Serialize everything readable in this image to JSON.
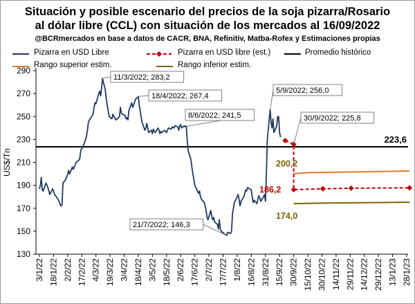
{
  "title_line1": "Situación y posible escenario del precios de la soja pizarra/Rosario",
  "title_line2": "al dólar libre (CCL) con situación de los mercados al 16/09/2022",
  "subtitle": "@BCRmercados en base a datos de CACR, BNA, Refinitiv, Matba-Rofex y Estimaciones propias",
  "colors": {
    "pizarra": "#1f3864",
    "pizarra_est": "#c00000",
    "promedio": "#000000",
    "rango_sup": "#e07b22",
    "rango_inf": "#7f6000"
  },
  "chart_data": {
    "type": "line",
    "ylabel": "US$/Tn",
    "ylim": [
      130,
      290
    ],
    "yticks": [
      130,
      150,
      170,
      190,
      210,
      230,
      250,
      270,
      290
    ],
    "xlabels": [
      "3/1/22",
      "18/1/22",
      "2/2/22",
      "17/2/22",
      "4/3/22",
      "19/3/22",
      "3/4/22",
      "18/4/22",
      "3/5/22",
      "18/5/22",
      "2/6/22",
      "17/6/22",
      "2/7/22",
      "17/7/22",
      "1/8/22",
      "16/8/22",
      "31/8/22",
      "15/9/22",
      "30/9/22",
      "15/10/22",
      "30/10/22",
      "14/11/22",
      "29/11/22",
      "14/12/22",
      "29/12/22",
      "13/1/23",
      "28/1/23"
    ],
    "legend": [
      {
        "key": "pizarra",
        "label": "Pizarra en USD Libre"
      },
      {
        "key": "pizarra_est",
        "label": "Pizarra en USD libre (est.)"
      },
      {
        "key": "promedio",
        "label": "Promedio histórico"
      },
      {
        "key": "rango_sup",
        "label": "Rango superior estim."
      },
      {
        "key": "rango_inf",
        "label": "Rango inferior estim."
      }
    ],
    "series": [
      {
        "name": "Pizarra en USD Libre",
        "key": "pizarra",
        "points": [
          [
            "2022-01-03",
            187
          ],
          [
            "2022-01-04",
            190
          ],
          [
            "2022-01-05",
            197
          ],
          [
            "2022-01-06",
            186
          ],
          [
            "2022-01-07",
            185
          ],
          [
            "2022-01-10",
            192
          ],
          [
            "2022-01-11",
            190
          ],
          [
            "2022-01-12",
            188
          ],
          [
            "2022-01-13",
            185
          ],
          [
            "2022-01-14",
            182
          ],
          [
            "2022-01-17",
            187
          ],
          [
            "2022-01-18",
            185
          ],
          [
            "2022-01-19",
            182
          ],
          [
            "2022-01-20",
            181
          ],
          [
            "2022-01-21",
            180
          ],
          [
            "2022-01-24",
            176
          ],
          [
            "2022-01-25",
            173
          ],
          [
            "2022-01-26",
            172
          ],
          [
            "2022-01-27",
            173
          ],
          [
            "2022-01-28",
            192
          ],
          [
            "2022-01-31",
            195
          ],
          [
            "2022-02-01",
            198
          ],
          [
            "2022-02-02",
            199
          ],
          [
            "2022-02-03",
            203
          ],
          [
            "2022-02-04",
            200
          ],
          [
            "2022-02-07",
            206
          ],
          [
            "2022-02-08",
            204
          ],
          [
            "2022-02-09",
            206
          ],
          [
            "2022-02-10",
            208
          ],
          [
            "2022-02-11",
            210
          ],
          [
            "2022-02-14",
            212
          ],
          [
            "2022-02-15",
            214
          ],
          [
            "2022-02-16",
            221
          ],
          [
            "2022-02-17",
            222
          ],
          [
            "2022-02-18",
            223
          ],
          [
            "2022-02-21",
            230
          ],
          [
            "2022-02-22",
            233
          ],
          [
            "2022-02-23",
            238
          ],
          [
            "2022-02-24",
            245
          ],
          [
            "2022-02-25",
            247
          ],
          [
            "2022-03-01",
            252
          ],
          [
            "2022-03-02",
            258
          ],
          [
            "2022-03-03",
            262
          ],
          [
            "2022-03-04",
            261
          ],
          [
            "2022-03-07",
            270
          ],
          [
            "2022-03-08",
            272
          ],
          [
            "2022-03-09",
            268
          ],
          [
            "2022-03-10",
            275
          ],
          [
            "2022-03-11",
            283.2
          ],
          [
            "2022-03-14",
            273
          ],
          [
            "2022-03-15",
            265
          ],
          [
            "2022-03-16",
            260
          ],
          [
            "2022-03-17",
            255
          ],
          [
            "2022-03-18",
            250
          ],
          [
            "2022-03-21",
            248
          ],
          [
            "2022-03-22",
            252
          ],
          [
            "2022-03-23",
            250
          ],
          [
            "2022-03-24",
            249
          ],
          [
            "2022-03-25",
            247
          ],
          [
            "2022-03-28",
            249
          ],
          [
            "2022-03-29",
            250
          ],
          [
            "2022-03-30",
            258
          ],
          [
            "2022-03-31",
            253
          ],
          [
            "2022-04-01",
            252
          ],
          [
            "2022-04-04",
            251
          ],
          [
            "2022-04-05",
            248
          ],
          [
            "2022-04-06",
            249
          ],
          [
            "2022-04-07",
            247
          ],
          [
            "2022-04-08",
            255
          ],
          [
            "2022-04-11",
            262
          ],
          [
            "2022-04-12",
            258
          ],
          [
            "2022-04-13",
            260
          ],
          [
            "2022-04-15",
            265
          ],
          [
            "2022-04-18",
            267.4
          ],
          [
            "2022-04-19",
            260
          ],
          [
            "2022-04-20",
            255
          ],
          [
            "2022-04-21",
            250
          ],
          [
            "2022-04-22",
            245
          ],
          [
            "2022-04-25",
            238
          ],
          [
            "2022-04-26",
            240
          ],
          [
            "2022-04-27",
            244
          ],
          [
            "2022-04-28",
            240
          ],
          [
            "2022-04-29",
            236
          ],
          [
            "2022-05-02",
            238
          ],
          [
            "2022-05-03",
            235
          ],
          [
            "2022-05-04",
            239
          ],
          [
            "2022-05-05",
            237
          ],
          [
            "2022-05-06",
            236
          ],
          [
            "2022-05-09",
            240
          ],
          [
            "2022-05-10",
            238
          ],
          [
            "2022-05-11",
            235
          ],
          [
            "2022-05-12",
            237
          ],
          [
            "2022-05-13",
            236
          ],
          [
            "2022-05-16",
            238
          ],
          [
            "2022-05-17",
            237
          ],
          [
            "2022-05-18",
            236
          ],
          [
            "2022-05-19",
            238
          ],
          [
            "2022-05-20",
            240
          ],
          [
            "2022-05-23",
            239
          ],
          [
            "2022-05-24",
            241
          ],
          [
            "2022-05-26",
            240
          ],
          [
            "2022-05-27",
            242
          ],
          [
            "2022-05-30",
            241
          ],
          [
            "2022-05-31",
            238
          ],
          [
            "2022-06-01",
            242
          ],
          [
            "2022-06-02",
            243
          ],
          [
            "2022-06-03",
            240
          ],
          [
            "2022-06-06",
            242
          ],
          [
            "2022-06-07",
            241
          ],
          [
            "2022-06-08",
            241.5
          ],
          [
            "2022-06-09",
            228
          ],
          [
            "2022-06-10",
            220
          ],
          [
            "2022-06-13",
            212
          ],
          [
            "2022-06-14",
            205
          ],
          [
            "2022-06-15",
            200
          ],
          [
            "2022-06-16",
            195
          ],
          [
            "2022-06-17",
            190
          ],
          [
            "2022-06-21",
            183
          ],
          [
            "2022-06-22",
            185
          ],
          [
            "2022-06-23",
            180
          ],
          [
            "2022-06-24",
            178
          ],
          [
            "2022-06-27",
            175
          ],
          [
            "2022-06-28",
            172
          ],
          [
            "2022-06-29",
            168
          ],
          [
            "2022-06-30",
            162
          ],
          [
            "2022-07-01",
            160
          ],
          [
            "2022-07-04",
            168
          ],
          [
            "2022-07-05",
            163
          ],
          [
            "2022-07-06",
            160
          ],
          [
            "2022-07-07",
            162
          ],
          [
            "2022-07-08",
            158
          ],
          [
            "2022-07-11",
            156
          ],
          [
            "2022-07-12",
            152
          ],
          [
            "2022-07-13",
            160
          ],
          [
            "2022-07-14",
            152
          ],
          [
            "2022-07-15",
            150
          ],
          [
            "2022-07-18",
            148
          ],
          [
            "2022-07-19",
            147
          ],
          [
            "2022-07-20",
            147
          ],
          [
            "2022-07-21",
            146.3
          ],
          [
            "2022-07-22",
            149
          ],
          [
            "2022-07-25",
            148
          ],
          [
            "2022-07-26",
            150
          ],
          [
            "2022-07-27",
            165
          ],
          [
            "2022-07-28",
            170
          ],
          [
            "2022-07-29",
            175
          ],
          [
            "2022-08-01",
            180
          ],
          [
            "2022-08-02",
            182
          ],
          [
            "2022-08-03",
            178
          ],
          [
            "2022-08-04",
            172
          ],
          [
            "2022-08-05",
            176
          ],
          [
            "2022-08-08",
            180
          ],
          [
            "2022-08-09",
            183
          ],
          [
            "2022-08-10",
            186
          ],
          [
            "2022-08-11",
            185
          ],
          [
            "2022-08-12",
            188
          ],
          [
            "2022-08-16",
            186
          ],
          [
            "2022-08-17",
            180
          ],
          [
            "2022-08-18",
            175
          ],
          [
            "2022-08-19",
            177
          ],
          [
            "2022-08-22",
            174
          ],
          [
            "2022-08-23",
            178
          ],
          [
            "2022-08-24",
            181
          ],
          [
            "2022-08-25",
            179
          ],
          [
            "2022-08-26",
            176
          ],
          [
            "2022-08-29",
            180
          ],
          [
            "2022-08-30",
            182
          ],
          [
            "2022-08-31",
            176
          ],
          [
            "2022-09-01",
            200
          ],
          [
            "2022-09-02",
            230
          ],
          [
            "2022-09-05",
            256.0
          ],
          [
            "2022-09-06",
            245
          ],
          [
            "2022-09-07",
            240
          ],
          [
            "2022-09-08",
            248
          ],
          [
            "2022-09-09",
            236
          ],
          [
            "2022-09-12",
            242
          ],
          [
            "2022-09-13",
            250
          ],
          [
            "2022-09-14",
            250
          ],
          [
            "2022-09-15",
            236
          ],
          [
            "2022-09-16",
            232
          ]
        ]
      },
      {
        "name": "Pizarra en USD libre (est.)",
        "key": "pizarra_est",
        "points": [
          [
            "2022-09-21",
            229
          ],
          [
            "2022-09-30",
            225.8
          ],
          [
            "2022-09-30",
            186.2
          ],
          [
            "2022-10-31",
            187
          ],
          [
            "2022-11-30",
            187.5
          ],
          [
            "2023-01-31",
            187.8
          ]
        ]
      },
      {
        "name": "Promedio histórico",
        "key": "promedio",
        "points": [
          [
            "2022-01-01",
            223.6
          ],
          [
            "2023-02-10",
            223.6
          ]
        ]
      },
      {
        "name": "Rango superior estim.",
        "key": "rango_sup",
        "points": [
          [
            "2022-09-30",
            200.2
          ],
          [
            "2022-10-15",
            201
          ],
          [
            "2022-11-15",
            201.5
          ],
          [
            "2022-12-31",
            202
          ],
          [
            "2023-01-31",
            202.5
          ]
        ]
      },
      {
        "name": "Rango inferior estim.",
        "key": "rango_inf",
        "points": [
          [
            "2022-09-30",
            174.0
          ],
          [
            "2022-10-31",
            174.5
          ],
          [
            "2022-12-31",
            175
          ],
          [
            "2023-01-31",
            175.3
          ]
        ]
      }
    ],
    "annotations": [
      {
        "label": "11/3/2022; 283,2",
        "date": "2022-03-11",
        "value": 283.2,
        "boxed": true
      },
      {
        "label": "18/4/2022; 267,4",
        "date": "2022-04-18",
        "value": 267.4,
        "boxed": true
      },
      {
        "label": "8/6/2022; 241,5",
        "date": "2022-06-08",
        "value": 241.5,
        "boxed": true
      },
      {
        "label": "21/7/2022; 146,3",
        "date": "2022-07-21",
        "value": 146.3,
        "boxed": true
      },
      {
        "label": "5/9/2022; 256,0",
        "date": "2022-09-05",
        "value": 256.0,
        "boxed": true
      },
      {
        "label": "30/9/2022; 225,8",
        "date": "2022-09-30",
        "value": 225.8,
        "boxed": true
      },
      {
        "label": "223,6",
        "value": 223.6,
        "boxed": false
      },
      {
        "label": "200,2",
        "value": 200.2,
        "boxed": false
      },
      {
        "label": "186,2",
        "value": 186.2,
        "boxed": false
      },
      {
        "label": "174,0",
        "value": 174.0,
        "boxed": false
      }
    ]
  }
}
